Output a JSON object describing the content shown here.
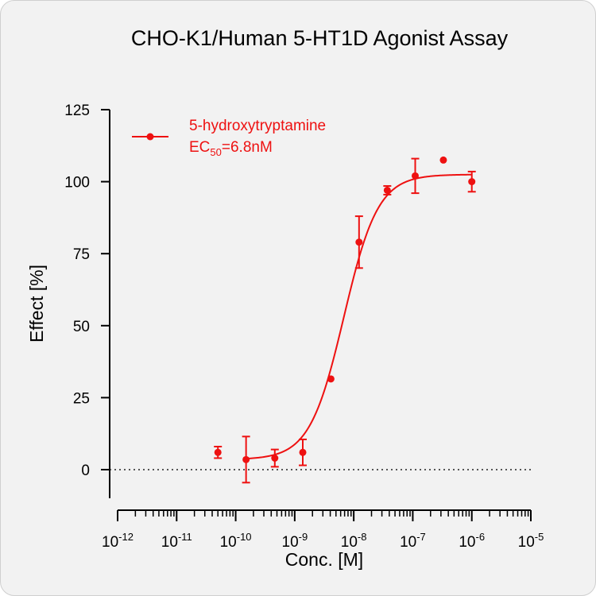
{
  "chart_data": {
    "type": "scatter",
    "title": "CHO-K1/Human 5-HT1D Agonist Assay",
    "xlabel": "Conc. [M]",
    "ylabel": "Effect  [%]",
    "x_scale": "log10",
    "xlim": [
      1e-12,
      1e-05
    ],
    "ylim": [
      -10,
      125
    ],
    "x_tick_labels": [
      {
        "base": "10",
        "exp": "-12"
      },
      {
        "base": "10",
        "exp": "-11"
      },
      {
        "base": "10",
        "exp": "-10"
      },
      {
        "base": "10",
        "exp": "-9"
      },
      {
        "base": "10",
        "exp": "-8"
      },
      {
        "base": "10",
        "exp": "-7"
      },
      {
        "base": "10",
        "exp": "-6"
      },
      {
        "base": "10",
        "exp": "-5"
      }
    ],
    "y_ticks": [
      0,
      25,
      50,
      75,
      100,
      125
    ],
    "baseline_dotted_y": 0,
    "color": "#ee1111",
    "legend": {
      "position": "top-left",
      "series_label": "5-hydroxytryptamine",
      "ec_prefix": "EC",
      "ec_sub": "50",
      "ec_value": "=6.8nM"
    },
    "series": [
      {
        "name": "5-hydroxytryptamine",
        "points": [
          {
            "x": 5e-11,
            "y": 6,
            "err": 2
          },
          {
            "x": 1.5e-10,
            "y": 3.5,
            "err": 8
          },
          {
            "x": 4.6e-10,
            "y": 4,
            "err": 3
          },
          {
            "x": 1.37e-09,
            "y": 6,
            "err": 4.5
          },
          {
            "x": 4.1e-09,
            "y": 31.5,
            "err": 0
          },
          {
            "x": 1.23e-08,
            "y": 79,
            "err": 9
          },
          {
            "x": 3.7e-08,
            "y": 97,
            "err": 1.5
          },
          {
            "x": 1.1e-07,
            "y": 102,
            "err": 6
          },
          {
            "x": 3.3e-07,
            "y": 107.5,
            "err": 0
          },
          {
            "x": 1e-06,
            "y": 100,
            "err": 3.5
          }
        ],
        "fit": {
          "model": "4PL",
          "bottom": 3.5,
          "top": 102.5,
          "ec50": 6.8e-09,
          "hill": 1.5
        }
      }
    ]
  }
}
